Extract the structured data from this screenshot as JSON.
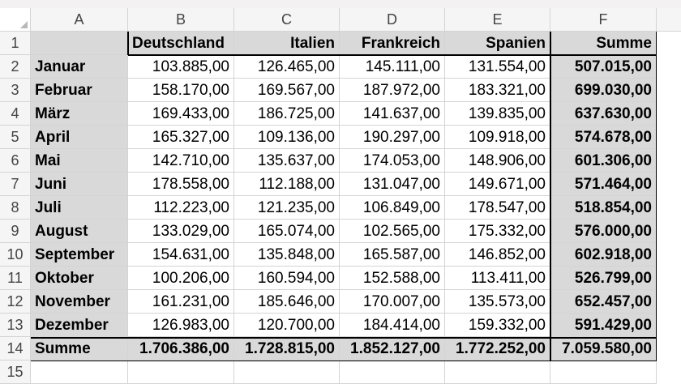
{
  "columns": [
    "A",
    "B",
    "C",
    "D",
    "E",
    "F"
  ],
  "rows": [
    "1",
    "2",
    "3",
    "4",
    "5",
    "6",
    "7",
    "8",
    "9",
    "10",
    "11",
    "12",
    "13",
    "14",
    "15"
  ],
  "header": [
    "",
    "Deutschland",
    "Italien",
    "Frankreich",
    "Spanien",
    "Summe"
  ],
  "months": [
    {
      "name": "Januar",
      "values": [
        "103.885,00",
        "126.465,00",
        "145.111,00",
        "131.554,00"
      ],
      "sum": "507.015,00"
    },
    {
      "name": "Februar",
      "values": [
        "158.170,00",
        "169.567,00",
        "187.972,00",
        "183.321,00"
      ],
      "sum": "699.030,00"
    },
    {
      "name": "März",
      "values": [
        "169.433,00",
        "186.725,00",
        "141.637,00",
        "139.835,00"
      ],
      "sum": "637.630,00"
    },
    {
      "name": "April",
      "values": [
        "165.327,00",
        "109.136,00",
        "190.297,00",
        "109.918,00"
      ],
      "sum": "574.678,00"
    },
    {
      "name": "Mai",
      "values": [
        "142.710,00",
        "135.637,00",
        "174.053,00",
        "148.906,00"
      ],
      "sum": "601.306,00"
    },
    {
      "name": "Juni",
      "values": [
        "178.558,00",
        "112.188,00",
        "131.047,00",
        "149.671,00"
      ],
      "sum": "571.464,00"
    },
    {
      "name": "Juli",
      "values": [
        "112.223,00",
        "121.235,00",
        "106.849,00",
        "178.547,00"
      ],
      "sum": "518.854,00"
    },
    {
      "name": "August",
      "values": [
        "133.029,00",
        "165.074,00",
        "102.565,00",
        "175.332,00"
      ],
      "sum": "576.000,00"
    },
    {
      "name": "September",
      "values": [
        "154.631,00",
        "135.848,00",
        "165.587,00",
        "146.852,00"
      ],
      "sum": "602.918,00"
    },
    {
      "name": "Oktober",
      "values": [
        "100.206,00",
        "160.594,00",
        "152.588,00",
        "113.411,00"
      ],
      "sum": "526.799,00"
    },
    {
      "name": "November",
      "values": [
        "161.231,00",
        "185.646,00",
        "170.007,00",
        "135.573,00"
      ],
      "sum": "652.457,00"
    },
    {
      "name": "Dezember",
      "values": [
        "126.983,00",
        "120.700,00",
        "184.414,00",
        "159.332,00"
      ],
      "sum": "591.429,00"
    }
  ],
  "total": {
    "name": "Summe",
    "values": [
      "1.706.386,00",
      "1.728.815,00",
      "1.852.127,00",
      "1.772.252,00"
    ],
    "sum": "7.059.580,00"
  },
  "colors": {
    "header_fill": "#d9d9d9",
    "gridline": "#d4d4d4",
    "border": "#000000"
  }
}
